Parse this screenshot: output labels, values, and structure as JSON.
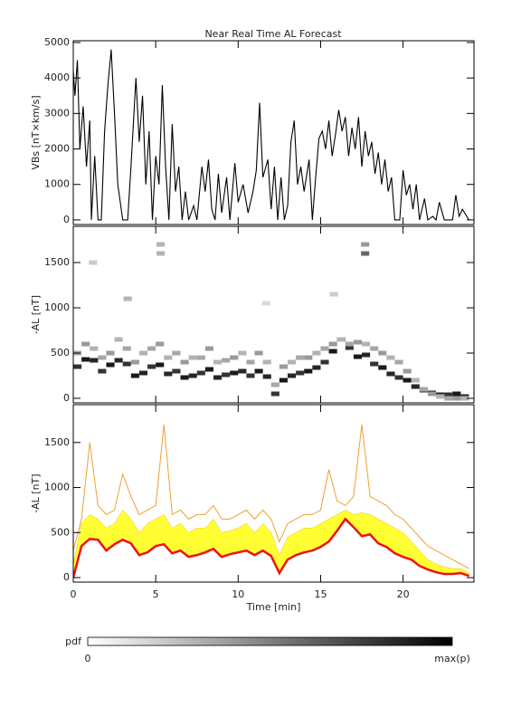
{
  "title": "Near Real Time AL Forecast",
  "colorbar": {
    "label": "pdf",
    "min_label": "0",
    "max_label": "max(p)"
  },
  "chart_data": [
    {
      "type": "line",
      "ylabel": "VBs [nT×km/s]",
      "xlim": [
        0,
        24.3
      ],
      "xticks": [
        0,
        5,
        10,
        15,
        20
      ],
      "ylim": [
        -130,
        5050
      ],
      "yticks": [
        0,
        1000,
        2000,
        3000,
        4000,
        5000
      ],
      "color": "#000000",
      "x": [
        0,
        0.1,
        0.25,
        0.4,
        0.6,
        0.8,
        1.0,
        1.1,
        1.3,
        1.5,
        1.7,
        1.9,
        2.1,
        2.3,
        2.5,
        2.7,
        3.0,
        3.3,
        3.5,
        3.8,
        4.0,
        4.2,
        4.4,
        4.6,
        4.8,
        5.0,
        5.2,
        5.4,
        5.6,
        5.8,
        6.0,
        6.2,
        6.4,
        6.6,
        6.8,
        7.0,
        7.3,
        7.5,
        7.8,
        8.0,
        8.2,
        8.4,
        8.6,
        8.8,
        9.0,
        9.3,
        9.5,
        9.8,
        10.0,
        10.3,
        10.6,
        10.9,
        11.1,
        11.3,
        11.5,
        11.8,
        12.0,
        12.2,
        12.4,
        12.6,
        12.8,
        13.0,
        13.2,
        13.4,
        13.6,
        13.8,
        14.0,
        14.3,
        14.5,
        14.7,
        14.9,
        15.1,
        15.3,
        15.5,
        15.7,
        15.9,
        16.1,
        16.3,
        16.5,
        16.7,
        16.9,
        17.1,
        17.3,
        17.5,
        17.7,
        17.9,
        18.1,
        18.3,
        18.5,
        18.7,
        18.9,
        19.1,
        19.3,
        19.5,
        19.8,
        20.0,
        20.2,
        20.4,
        20.6,
        20.8,
        21.0,
        21.3,
        21.5,
        21.8,
        22.0,
        22.2,
        22.5,
        23.0,
        23.2,
        23.4,
        23.6,
        24.0
      ],
      "values": [
        4200,
        3500,
        4500,
        2000,
        3200,
        1500,
        2800,
        0,
        1800,
        0,
        0,
        2500,
        3800,
        4800,
        3000,
        1000,
        0,
        0,
        1500,
        4000,
        2200,
        3500,
        1000,
        2500,
        0,
        1800,
        1000,
        3800,
        1500,
        0,
        2700,
        800,
        1500,
        0,
        800,
        0,
        400,
        0,
        1500,
        800,
        1700,
        300,
        0,
        1300,
        200,
        1200,
        0,
        1600,
        500,
        1000,
        200,
        800,
        1400,
        3300,
        1200,
        1700,
        300,
        1500,
        0,
        1200,
        0,
        400,
        2200,
        2800,
        1000,
        1500,
        800,
        1700,
        0,
        1200,
        2300,
        2500,
        2000,
        2800,
        1800,
        2400,
        3100,
        2500,
        2900,
        1800,
        2600,
        2000,
        2900,
        1500,
        2500,
        1800,
        2200,
        1300,
        1900,
        1000,
        1700,
        800,
        1200,
        0,
        0,
        1400,
        700,
        1000,
        300,
        1000,
        0,
        600,
        0,
        100,
        0,
        500,
        0,
        0,
        700,
        100,
        300,
        0
      ]
    },
    {
      "type": "heatmap",
      "ylabel": "-AL [nT]",
      "xlim": [
        0,
        24.3
      ],
      "xticks": [
        0,
        5,
        10,
        15,
        20
      ],
      "ylim": [
        -50,
        1900
      ],
      "yticks": [
        0,
        500,
        1000,
        1500
      ],
      "cells": {
        "x": [
          0.25,
          0.75,
          1.25,
          1.75,
          2.25,
          2.75,
          3.25,
          3.75,
          4.25,
          4.75,
          5.25,
          5.75,
          6.25,
          6.75,
          7.25,
          7.75,
          8.25,
          8.75,
          9.25,
          9.75,
          10.25,
          10.75,
          11.25,
          11.75,
          12.25,
          12.75,
          13.25,
          13.75,
          14.25,
          14.75,
          15.25,
          15.75,
          16.25,
          16.75,
          17.25,
          17.75,
          18.25,
          18.75,
          19.25,
          19.75,
          20.25,
          20.75,
          21.25,
          21.75,
          22.25,
          22.75,
          23.25,
          23.75,
          0.25,
          0.75,
          1.25,
          1.75,
          2.25,
          2.75,
          3.25,
          3.75,
          4.25,
          4.75,
          5.25,
          5.75,
          6.25,
          6.75,
          7.25,
          7.75,
          8.25,
          8.75,
          9.25,
          9.75,
          10.25,
          10.75,
          11.25,
          11.75,
          12.25,
          12.75,
          13.25,
          13.75,
          14.25,
          14.75,
          15.25,
          15.75,
          16.25,
          16.75,
          17.25,
          17.75,
          18.25,
          18.75,
          19.25,
          19.75,
          20.25,
          20.75,
          21.25,
          21.75,
          22.25,
          22.75,
          23.25,
          23.75,
          5.3,
          5.3,
          17.7,
          17.7,
          1.2,
          3.3,
          15.8,
          11.7
        ],
        "y": [
          350,
          430,
          420,
          300,
          370,
          420,
          380,
          250,
          280,
          350,
          370,
          270,
          300,
          230,
          250,
          280,
          320,
          230,
          260,
          280,
          300,
          250,
          300,
          240,
          50,
          200,
          250,
          280,
          300,
          340,
          400,
          520,
          650,
          560,
          460,
          480,
          380,
          340,
          270,
          230,
          200,
          130,
          90,
          60,
          40,
          40,
          50,
          20,
          500,
          600,
          550,
          450,
          500,
          650,
          550,
          400,
          500,
          550,
          600,
          450,
          500,
          400,
          450,
          450,
          550,
          400,
          420,
          450,
          500,
          400,
          500,
          400,
          150,
          350,
          400,
          450,
          450,
          500,
          550,
          600,
          650,
          600,
          620,
          600,
          550,
          500,
          450,
          400,
          300,
          200,
          100,
          50,
          20,
          0,
          0,
          0,
          1700,
          1600,
          1700,
          1600,
          1500,
          1100,
          1150,
          1050
        ],
        "p": [
          0.8,
          0.9,
          0.85,
          0.8,
          0.9,
          0.85,
          0.8,
          0.9,
          0.85,
          0.8,
          0.9,
          0.85,
          0.8,
          0.9,
          0.85,
          0.8,
          0.9,
          0.85,
          0.8,
          0.9,
          0.85,
          0.8,
          0.9,
          0.85,
          0.8,
          0.9,
          0.85,
          0.8,
          0.9,
          0.85,
          0.8,
          0.9,
          0.85,
          0.8,
          0.9,
          0.85,
          0.8,
          0.9,
          0.85,
          0.8,
          0.9,
          0.85,
          0.8,
          0.9,
          0.85,
          0.8,
          0.9,
          0.85,
          0.35,
          0.4,
          0.3,
          0.35,
          0.4,
          0.3,
          0.35,
          0.4,
          0.3,
          0.35,
          0.4,
          0.3,
          0.35,
          0.4,
          0.3,
          0.35,
          0.4,
          0.3,
          0.35,
          0.4,
          0.3,
          0.35,
          0.4,
          0.3,
          0.35,
          0.4,
          0.3,
          0.35,
          0.4,
          0.3,
          0.35,
          0.4,
          0.3,
          0.35,
          0.4,
          0.3,
          0.35,
          0.4,
          0.3,
          0.35,
          0.4,
          0.3,
          0.35,
          0.4,
          0.3,
          0.35,
          0.4,
          0.3,
          0.3,
          0.3,
          0.4,
          0.6,
          0.2,
          0.3,
          0.2,
          0.15
        ]
      }
    },
    {
      "type": "band",
      "ylabel": "-AL [nT]",
      "xlabel": "Time [min]",
      "xlim": [
        0,
        24.3
      ],
      "xticks": [
        0,
        5,
        10,
        15,
        20
      ],
      "ylim": [
        -50,
        1920
      ],
      "yticks": [
        0,
        500,
        1000,
        1500
      ],
      "x": [
        0,
        0.5,
        1,
        1.5,
        2,
        2.5,
        3,
        3.5,
        4,
        4.5,
        5,
        5.5,
        6,
        6.5,
        7,
        7.5,
        8,
        8.5,
        9,
        9.5,
        10,
        10.5,
        11,
        11.5,
        12,
        12.5,
        13,
        13.5,
        14,
        14.5,
        15,
        15.5,
        16,
        16.5,
        17,
        17.5,
        18,
        18.5,
        19,
        19.5,
        20,
        20.5,
        21,
        21.5,
        22,
        22.5,
        23,
        23.5,
        24
      ],
      "series": [
        {
          "color": "#ee1111",
          "values": [
            0,
            350,
            430,
            420,
            300,
            370,
            420,
            380,
            250,
            280,
            350,
            370,
            270,
            300,
            230,
            250,
            280,
            320,
            230,
            260,
            280,
            300,
            250,
            300,
            240,
            50,
            200,
            250,
            280,
            300,
            340,
            400,
            520,
            650,
            560,
            460,
            480,
            380,
            340,
            270,
            230,
            200,
            130,
            90,
            60,
            40,
            40,
            50,
            20
          ]
        },
        {
          "color": "#ffff33",
          "values": [
            150,
            600,
            700,
            650,
            550,
            600,
            750,
            650,
            500,
            600,
            650,
            700,
            550,
            600,
            500,
            550,
            550,
            650,
            500,
            520,
            550,
            600,
            500,
            600,
            500,
            250,
            450,
            500,
            550,
            550,
            600,
            650,
            700,
            750,
            700,
            720,
            700,
            650,
            600,
            550,
            500,
            400,
            300,
            200,
            150,
            120,
            100,
            100,
            50
          ]
        },
        {
          "color": "#f0a030",
          "values": [
            300,
            650,
            1500,
            800,
            700,
            750,
            1150,
            900,
            700,
            750,
            800,
            1700,
            700,
            750,
            650,
            700,
            700,
            800,
            650,
            650,
            700,
            750,
            650,
            750,
            650,
            400,
            600,
            650,
            700,
            700,
            750,
            1200,
            850,
            800,
            900,
            1700,
            900,
            850,
            800,
            700,
            650,
            550,
            450,
            350,
            300,
            250,
            200,
            150,
            100
          ]
        }
      ]
    }
  ]
}
